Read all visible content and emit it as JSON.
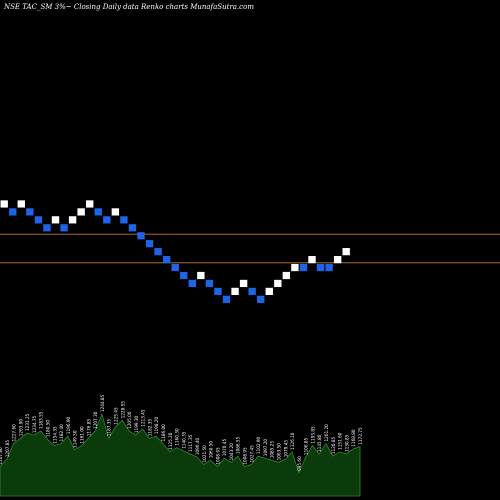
{
  "header": {
    "symbol": "NSE TAC_SM",
    "box_size": "3%",
    "caption": "Closing Daily data Renko charts MunafaSutra.com"
  },
  "colors": {
    "background": "#000000",
    "up_brick": "#ffffff",
    "down_brick": "#1e64e6",
    "reference_line": "#c87832",
    "volume_fill": "#0b3a0b",
    "volume_edge": "#2f8a2f"
  },
  "chart_data": {
    "type": "renko",
    "bricks": [
      {
        "level": 7,
        "dir": "up"
      },
      {
        "level": 6,
        "dir": "down"
      },
      {
        "level": 7,
        "dir": "up"
      },
      {
        "level": 6,
        "dir": "down"
      },
      {
        "level": 5,
        "dir": "down"
      },
      {
        "level": 4,
        "dir": "down"
      },
      {
        "level": 5,
        "dir": "up"
      },
      {
        "level": 4,
        "dir": "down"
      },
      {
        "level": 5,
        "dir": "up"
      },
      {
        "level": 6,
        "dir": "up"
      },
      {
        "level": 7,
        "dir": "up"
      },
      {
        "level": 6,
        "dir": "down"
      },
      {
        "level": 5,
        "dir": "down"
      },
      {
        "level": 6,
        "dir": "up"
      },
      {
        "level": 5,
        "dir": "down"
      },
      {
        "level": 4,
        "dir": "down"
      },
      {
        "level": 3,
        "dir": "down"
      },
      {
        "level": 2,
        "dir": "down"
      },
      {
        "level": 1,
        "dir": "down"
      },
      {
        "level": 0,
        "dir": "down"
      },
      {
        "level": -1,
        "dir": "down"
      },
      {
        "level": -2,
        "dir": "down"
      },
      {
        "level": -3,
        "dir": "down"
      },
      {
        "level": -2,
        "dir": "up"
      },
      {
        "level": -3,
        "dir": "down"
      },
      {
        "level": -4,
        "dir": "down"
      },
      {
        "level": -5,
        "dir": "down"
      },
      {
        "level": -4,
        "dir": "up"
      },
      {
        "level": -3,
        "dir": "up"
      },
      {
        "level": -4,
        "dir": "down"
      },
      {
        "level": -5,
        "dir": "down"
      },
      {
        "level": -4,
        "dir": "up"
      },
      {
        "level": -3,
        "dir": "up"
      },
      {
        "level": -2,
        "dir": "up"
      },
      {
        "level": -1,
        "dir": "up"
      },
      {
        "level": -1,
        "dir": "down"
      },
      {
        "level": 0,
        "dir": "up"
      },
      {
        "level": -1,
        "dir": "down"
      },
      {
        "level": -1,
        "dir": "down"
      },
      {
        "level": 0,
        "dir": "up"
      },
      {
        "level": 1,
        "dir": "up"
      }
    ],
    "reference_lines": [
      3.2,
      -0.4
    ],
    "volume_labels": [
      "1207.80",
      "1207.85",
      "1227.60",
      "1263.90",
      "1231.25",
      "1234.75",
      "1183.55",
      "1180.50",
      "1154.35",
      "1182.40",
      "1196.90",
      "1149.50",
      "1161.00",
      "1176.85",
      "1207.30",
      "1244.85",
      "1187.35",
      "1225.45",
      "1228.55",
      "1205.00",
      "1199.30",
      "1213.45",
      "1182.35",
      "1198.20",
      "1186.00",
      "1125.20",
      "1160.30",
      "1140.35",
      "1117.35",
      "1096.40",
      "1021.50",
      "1060.50",
      "1008.65",
      "1070.45",
      "1043.20",
      "1086.55",
      "1008.95",
      "1027.45",
      "1102.90",
      "1097.20",
      "1085.25",
      "1063.50",
      "1079.45",
      "1126.10",
      "995.60",
      "1106.85",
      "1193.85",
      "1145.80",
      "1201.20",
      "1120.85",
      "1151.60",
      "1130.85",
      "1168.80",
      "1172.75"
    ],
    "volumes": [
      28,
      35,
      50,
      55,
      60,
      58,
      62,
      54,
      48,
      50,
      57,
      44,
      48,
      55,
      62,
      78,
      55,
      66,
      72,
      62,
      58,
      64,
      55,
      57,
      50,
      42,
      46,
      43,
      40,
      37,
      30,
      34,
      28,
      36,
      32,
      38,
      28,
      30,
      38,
      36,
      34,
      32,
      35,
      42,
      22,
      37,
      48,
      40,
      50,
      38,
      42,
      40,
      45,
      47
    ]
  }
}
